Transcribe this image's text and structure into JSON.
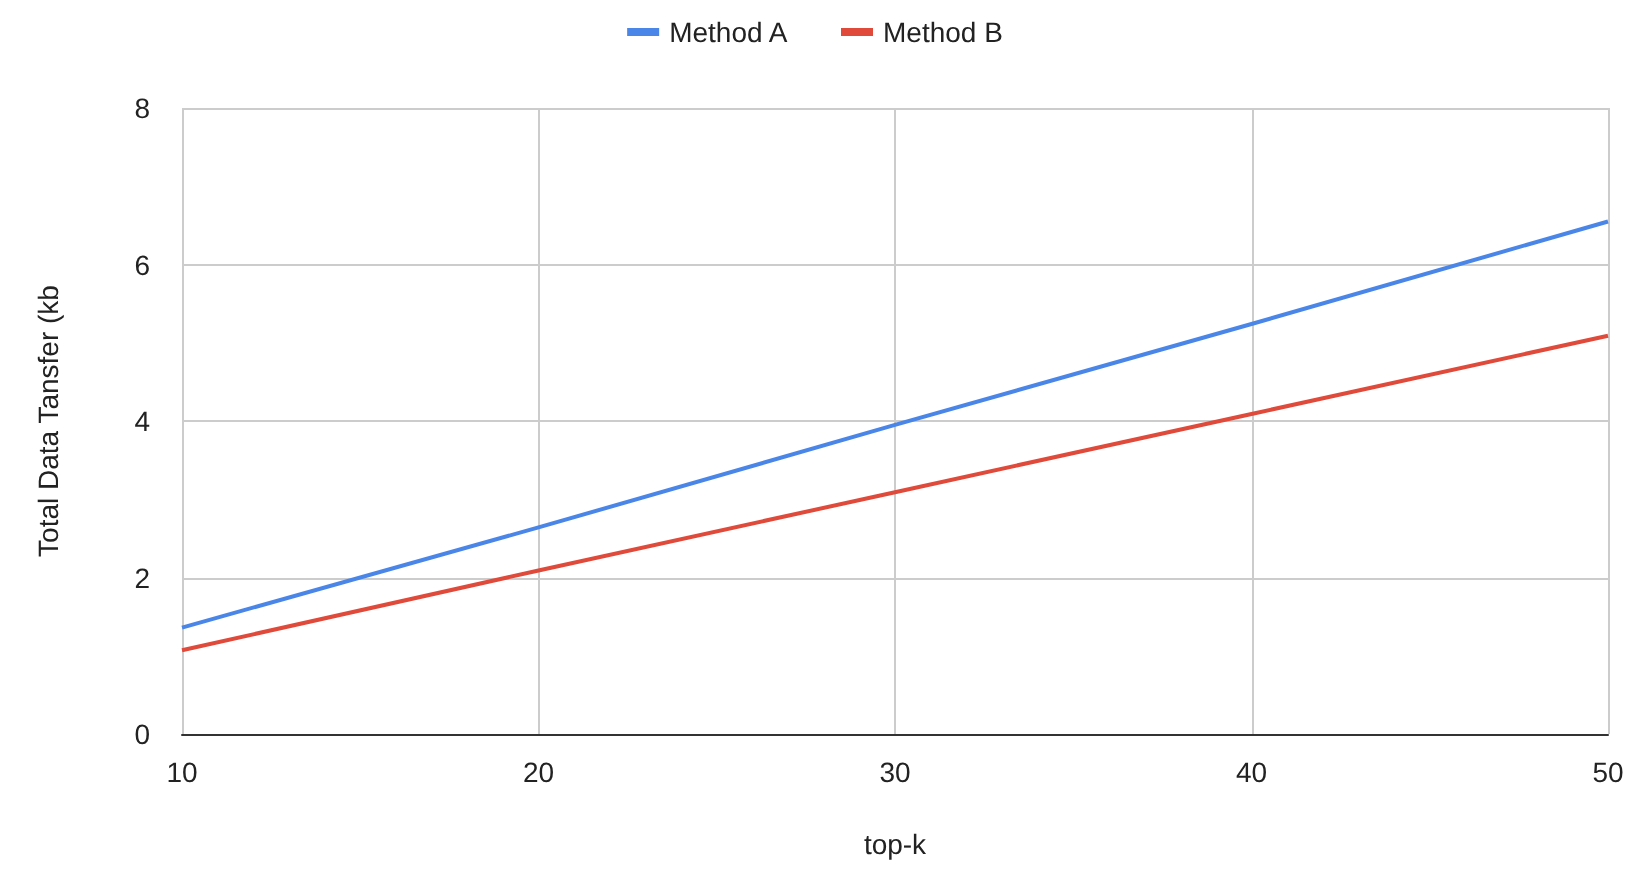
{
  "chart_data": {
    "type": "line",
    "xlabel": "top-k",
    "ylabel": "Total Data Tansfer (kb",
    "x": [
      10,
      20,
      30,
      40,
      50
    ],
    "series": [
      {
        "name": "Method A",
        "color": "#4a86e8",
        "values": [
          1.36,
          2.64,
          3.95,
          5.24,
          6.55
        ]
      },
      {
        "name": "Method B",
        "color": "#e04a3b",
        "values": [
          1.07,
          2.09,
          3.09,
          4.09,
          5.09
        ]
      }
    ],
    "xlim": [
      10,
      50
    ],
    "xticks": [
      10,
      20,
      30,
      40,
      50
    ],
    "ylim": [
      0,
      8
    ],
    "yticks": [
      0,
      2,
      4,
      6,
      8
    ],
    "grid": true,
    "legend": "top",
    "marker": "none"
  }
}
